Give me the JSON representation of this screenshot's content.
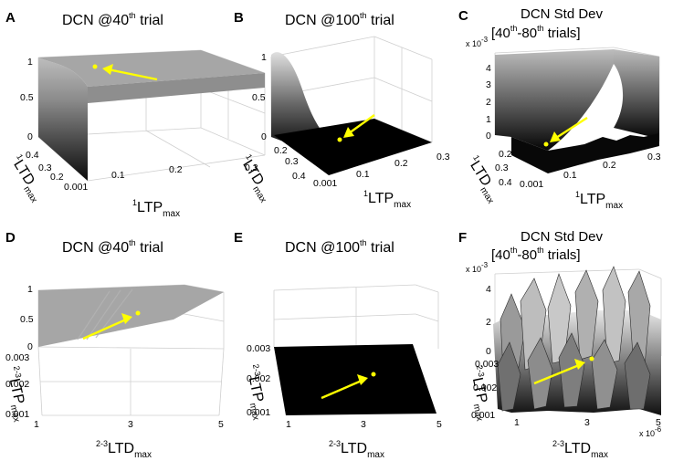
{
  "figure": {
    "panels": [
      "A",
      "B",
      "C",
      "D",
      "E",
      "F"
    ],
    "colors": {
      "surface_gray": "#a6a6a6",
      "surface_black": "#000000",
      "marker": "#ffff00",
      "box": "#cfcfcf"
    }
  },
  "chart_data": [
    {
      "panel": "A",
      "type": "surface3d",
      "title": "DCN @40th trial",
      "xlabel": "¹LTP_max",
      "ylabel": "¹LTD_max",
      "zlabel": "",
      "xticks": [
        "0.1",
        "0.2",
        "0.3"
      ],
      "yticks": [
        "0.001",
        "0.2",
        "0.3",
        "0.4"
      ],
      "zticks": [
        "0",
        "0.5",
        "1"
      ],
      "xlim": [
        0.001,
        0.3
      ],
      "ylim": [
        0.001,
        0.4
      ],
      "zlim": [
        0,
        1
      ],
      "description_values": {
        "plateau_z": 0.9,
        "low_ltd_edge_min_z": 0.75
      },
      "marker": {
        "x": 0.1,
        "y": 0.1,
        "z": 0.9
      }
    },
    {
      "panel": "B",
      "type": "surface3d",
      "title": "DCN @100th trial",
      "xlabel": "¹LTP_max",
      "ylabel": "¹LTD_max",
      "xticks": [
        "0.001",
        "0.1",
        "0.2",
        "0.3"
      ],
      "yticks": [
        "0.2",
        "0.3",
        "0.4"
      ],
      "zticks": [
        "0",
        "0.5",
        "1"
      ],
      "xlim": [
        0.001,
        0.3
      ],
      "ylim": [
        0.001,
        0.4
      ],
      "zlim": [
        0,
        1
      ],
      "description_values": {
        "peak_z": 0.95,
        "floor_z": 0.0
      },
      "marker": {
        "x": 0.05,
        "y": 0.1,
        "z": 0.0
      }
    },
    {
      "panel": "C",
      "type": "surface3d",
      "title": "DCN Std Dev [40th-80th trials]",
      "xlabel": "¹LTP_max",
      "ylabel": "¹LTD_max",
      "xticks": [
        "0.001",
        "0.1",
        "0.2",
        "0.3"
      ],
      "yticks": [
        "0.2",
        "0.3",
        "0.4"
      ],
      "zticks": [
        "0",
        "1",
        "2",
        "3",
        "4"
      ],
      "zscale": "x 10^-3",
      "xlim": [
        0.001,
        0.3
      ],
      "ylim": [
        0.001,
        0.4
      ],
      "zlim": [
        0,
        0.0045
      ],
      "description_values": {
        "back_z": 0.0045,
        "floor_z": 0.0
      },
      "marker": {
        "x": 0.05,
        "y": 0.1,
        "z": 0.0
      }
    },
    {
      "panel": "D",
      "type": "surface3d",
      "title": "DCN @40th trial",
      "xlabel": "²⁻³LTD_max",
      "ylabel": "²⁻³LTP_max",
      "xticks": [
        "1",
        "3",
        "5"
      ],
      "yticks": [
        "0.001",
        "0.002",
        "0.003"
      ],
      "zticks": [
        "0",
        "0.5",
        "1"
      ],
      "xlim": [
        1,
        5
      ],
      "ylim": [
        0.001,
        0.003
      ],
      "zlim": [
        0,
        1
      ],
      "description_values": {
        "plateau_z": 0.9
      },
      "marker": {
        "x": 3.5,
        "y": 0.002,
        "z": 0.9
      }
    },
    {
      "panel": "E",
      "type": "surface3d",
      "title": "DCN @100th trial",
      "xlabel": "²⁻³LTD_max",
      "ylabel": "²⁻³LTP_max",
      "xticks": [
        "1",
        "3",
        "5"
      ],
      "yticks": [
        "0.001",
        "0.002",
        "0.003"
      ],
      "zticks": [],
      "xlim": [
        1,
        5
      ],
      "ylim": [
        0.001,
        0.003
      ],
      "zlim": [
        0,
        1
      ],
      "description_values": {
        "floor_z": 0.0
      },
      "marker": {
        "x": 3.5,
        "y": 0.002,
        "z": 0.0
      }
    },
    {
      "panel": "F",
      "type": "surface3d",
      "title": "DCN Std Dev [40th-80th trials]",
      "xlabel": "²⁻³LTD_max",
      "ylabel": "²⁻³LTP_max",
      "xticks": [
        "1",
        "3",
        "5"
      ],
      "yticks": [
        "0.001",
        "0.002",
        "0.003"
      ],
      "zticks": [
        "0",
        "2",
        "4"
      ],
      "zscale": "x 10^-3",
      "xscale": "x 10^-6",
      "xlim": [
        1,
        5
      ],
      "ylim": [
        0.001,
        0.003
      ],
      "zlim": [
        0,
        0.0045
      ],
      "marker": {
        "x": 3.5,
        "y": 0.002,
        "z": 0.0
      }
    }
  ],
  "labels": {
    "A": {
      "letter": "A",
      "t1": "DCN @40",
      "sup": "th",
      "t2": " trial",
      "ylab": "LTD",
      "ylab_pre": "1",
      "ylab_sub": "max",
      "xlab": "LTP",
      "xlab_pre": "1",
      "xlab_sub": "max"
    },
    "B": {
      "letter": "B",
      "t1": "DCN  @100",
      "sup": "th",
      "t2": " trial",
      "ylab": "LTD",
      "ylab_pre": "1",
      "ylab_sub": "max",
      "xlab": "LTP",
      "xlab_pre": "1",
      "xlab_sub": "max"
    },
    "C": {
      "letter": "C",
      "l1": "DCN Std Dev",
      "l2a": "[40",
      "sup1": "th",
      "l2b": "-80",
      "sup2": "th",
      "l2c": " trials]",
      "ylab": "LTD",
      "ylab_pre": "1",
      "ylab_sub": "max",
      "xlab": "LTP",
      "xlab_pre": "1",
      "xlab_sub": "max",
      "zexp": "x 10",
      "zexp_pow": "-3"
    },
    "D": {
      "letter": "D",
      "t1": "DCN @40",
      "sup": "th",
      "t2": " trial",
      "ylab": "LTP",
      "ylab_pre": "2-3",
      "ylab_sub": "max",
      "xlab": "LTD",
      "xlab_pre": "2-3",
      "xlab_sub": "max"
    },
    "E": {
      "letter": "E",
      "t1": "DCN  @100",
      "sup": "th",
      "t2": " trial",
      "ylab": "LTP",
      "ylab_pre": "2-3",
      "ylab_sub": "max",
      "xlab": "LTD",
      "xlab_pre": "2-3",
      "xlab_sub": "max"
    },
    "F": {
      "letter": "F",
      "l1": "DCN Std Dev",
      "l2a": "[40",
      "sup1": "th",
      "l2b": "-80",
      "sup2": "th",
      "l2c": " trials]",
      "ylab": "LTP",
      "ylab_pre": "2-3",
      "ylab_sub": "max",
      "xlab": "LTD",
      "xlab_pre": "2-3",
      "xlab_sub": "max",
      "zexp": "x 10",
      "zexp_pow": "-3",
      "xexp": "x 10",
      "xexp_pow": "-6"
    }
  }
}
